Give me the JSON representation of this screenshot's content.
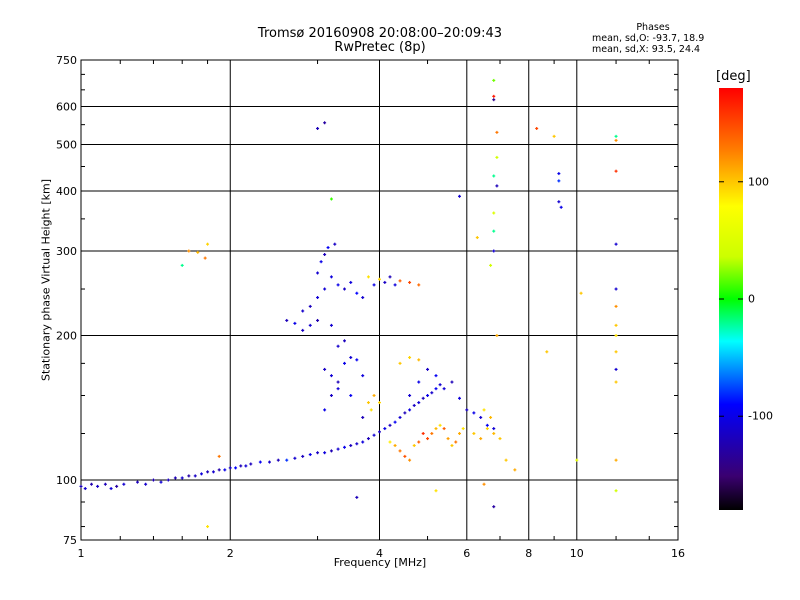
{
  "header": {
    "title_line1": "Tromsø 20160908 20:08:00–20:09:43",
    "title_line2": "RwPretec (8p)"
  },
  "phases": {
    "heading": "Phases",
    "line_O": "mean, sd,O: -93.7, 18.9",
    "line_X": "mean, sd,X:  93.5, 24.4"
  },
  "colorbar": {
    "unit": "[deg]",
    "ticks": [
      {
        "value": 100,
        "label": "100"
      },
      {
        "value": 0,
        "label": "0"
      },
      {
        "value": -100,
        "label": "-100"
      }
    ],
    "range": [
      -180,
      180
    ]
  },
  "chart_data": {
    "type": "scatter",
    "xlabel": "Frequency [MHz]",
    "ylabel": "Stationary phase Virtual Height [km]",
    "xscale": "log",
    "yscale": "log",
    "xlim": [
      1,
      16
    ],
    "ylim": [
      75,
      750
    ],
    "xticks": [
      {
        "value": 1,
        "label": "1"
      },
      {
        "value": 2,
        "label": "2"
      },
      {
        "value": 4,
        "label": "4"
      },
      {
        "value": 6,
        "label": "6"
      },
      {
        "value": 8,
        "label": "8"
      },
      {
        "value": 10,
        "label": "10"
      },
      {
        "value": 16,
        "label": "16"
      }
    ],
    "yticks": [
      {
        "value": 75,
        "label": "75"
      },
      {
        "value": 100,
        "label": "100"
      },
      {
        "value": 200,
        "label": "200"
      },
      {
        "value": 300,
        "label": "300"
      },
      {
        "value": 400,
        "label": "400"
      },
      {
        "value": 500,
        "label": "500"
      },
      {
        "value": 600,
        "label": "600"
      },
      {
        "value": 750,
        "label": "750"
      }
    ],
    "grid": true,
    "series": [
      {
        "points": [
          [
            1.0,
            97,
            -120
          ],
          [
            1.02,
            96,
            -110
          ],
          [
            1.05,
            98,
            -125
          ],
          [
            1.08,
            97,
            -115
          ],
          [
            1.12,
            98,
            -120
          ],
          [
            1.15,
            96,
            -105
          ],
          [
            1.18,
            97,
            -130
          ],
          [
            1.22,
            98,
            -110
          ],
          [
            1.3,
            99,
            -120
          ],
          [
            1.35,
            98,
            -112
          ],
          [
            1.4,
            100,
            -125
          ],
          [
            1.45,
            99,
            -108
          ],
          [
            1.5,
            100,
            -118
          ],
          [
            1.55,
            101,
            -122
          ],
          [
            1.6,
            101,
            -110
          ],
          [
            1.65,
            102,
            -128
          ],
          [
            1.7,
            102,
            -115
          ],
          [
            1.75,
            103,
            -105
          ],
          [
            1.8,
            104,
            -120
          ],
          [
            1.85,
            104,
            -112
          ],
          [
            1.9,
            105,
            -125
          ],
          [
            1.95,
            105,
            -100
          ],
          [
            2.0,
            106,
            -115
          ],
          [
            2.05,
            106,
            -90
          ],
          [
            2.1,
            107,
            -120
          ],
          [
            2.15,
            107,
            -108
          ],
          [
            2.2,
            108,
            -118
          ],
          [
            2.3,
            109,
            -95
          ],
          [
            2.4,
            109,
            -112
          ],
          [
            2.5,
            110,
            -120
          ],
          [
            2.6,
            110,
            -80
          ],
          [
            2.7,
            111,
            -110
          ],
          [
            2.8,
            112,
            -118
          ],
          [
            2.9,
            113,
            -100
          ],
          [
            3.0,
            114,
            -115
          ],
          [
            3.1,
            114,
            -105
          ],
          [
            3.2,
            115,
            -122
          ],
          [
            3.3,
            116,
            -110
          ],
          [
            3.4,
            117,
            -98
          ],
          [
            3.5,
            118,
            -118
          ],
          [
            3.6,
            119,
            -112
          ],
          [
            3.7,
            120,
            -105
          ],
          [
            3.8,
            122,
            -120
          ],
          [
            3.9,
            124,
            -108
          ],
          [
            4.0,
            126,
            -115
          ],
          [
            4.1,
            128,
            -100
          ],
          [
            4.2,
            130,
            -118
          ],
          [
            4.3,
            132,
            -95
          ],
          [
            4.4,
            135,
            -110
          ],
          [
            4.5,
            138,
            -120
          ],
          [
            4.6,
            140,
            -102
          ],
          [
            4.7,
            143,
            -115
          ],
          [
            4.8,
            145,
            -108
          ],
          [
            4.9,
            148,
            -118
          ],
          [
            5.0,
            150,
            -100
          ],
          [
            5.1,
            152,
            -112
          ],
          [
            5.2,
            155,
            -95
          ],
          [
            5.3,
            158,
            -110
          ],
          [
            1.6,
            280,
            -20
          ],
          [
            1.65,
            300,
            120
          ],
          [
            1.72,
            298,
            105
          ],
          [
            1.78,
            290,
            130
          ],
          [
            1.8,
            310,
            95
          ],
          [
            3.0,
            270,
            -110
          ],
          [
            3.05,
            285,
            -100
          ],
          [
            3.1,
            295,
            -120
          ],
          [
            3.15,
            305,
            -95
          ],
          [
            3.2,
            265,
            -105
          ],
          [
            3.25,
            310,
            -115
          ],
          [
            3.0,
            240,
            -108
          ],
          [
            2.9,
            230,
            -118
          ],
          [
            2.8,
            225,
            -112
          ],
          [
            2.6,
            215,
            -120
          ],
          [
            2.7,
            212,
            -100
          ],
          [
            2.8,
            205,
            -115
          ],
          [
            2.9,
            210,
            -110
          ],
          [
            3.0,
            215,
            -125
          ],
          [
            3.1,
            250,
            -108
          ],
          [
            3.3,
            255,
            -100
          ],
          [
            3.4,
            250,
            -115
          ],
          [
            3.5,
            258,
            -105
          ],
          [
            3.6,
            245,
            -90
          ],
          [
            3.7,
            240,
            -110
          ],
          [
            3.9,
            255,
            -100
          ],
          [
            4.1,
            258,
            -115
          ],
          [
            4.2,
            265,
            -120
          ],
          [
            4.3,
            255,
            -105
          ],
          [
            3.8,
            265,
            90
          ],
          [
            4.0,
            262,
            95
          ],
          [
            4.4,
            260,
            140
          ],
          [
            4.6,
            258,
            150
          ],
          [
            4.8,
            255,
            135
          ],
          [
            3.1,
            170,
            -115
          ],
          [
            3.2,
            165,
            -108
          ],
          [
            3.3,
            160,
            -120
          ],
          [
            3.4,
            175,
            -100
          ],
          [
            3.5,
            180,
            -110
          ],
          [
            3.6,
            178,
            -95
          ],
          [
            3.7,
            165,
            -105
          ],
          [
            3.3,
            190,
            -112
          ],
          [
            3.4,
            195,
            -118
          ],
          [
            3.2,
            210,
            -110
          ],
          [
            3.1,
            140,
            -100
          ],
          [
            3.2,
            150,
            -115
          ],
          [
            3.3,
            155,
            -108
          ],
          [
            3.5,
            150,
            -95
          ],
          [
            3.7,
            135,
            -120
          ],
          [
            3.8,
            145,
            100
          ],
          [
            3.9,
            150,
            110
          ],
          [
            4.0,
            145,
            95
          ],
          [
            3.85,
            140,
            90
          ],
          [
            4.2,
            120,
            85
          ],
          [
            4.3,
            118,
            110
          ],
          [
            4.4,
            115,
            130
          ],
          [
            4.5,
            112,
            145
          ],
          [
            4.6,
            110,
            120
          ],
          [
            4.7,
            118,
            100
          ],
          [
            4.8,
            120,
            140
          ],
          [
            4.9,
            125,
            160
          ],
          [
            5.0,
            122,
            150
          ],
          [
            5.1,
            125,
            130
          ],
          [
            5.2,
            128,
            105
          ],
          [
            5.3,
            130,
            90
          ],
          [
            5.4,
            128,
            140
          ],
          [
            5.5,
            122,
            115
          ],
          [
            5.6,
            118,
            100
          ],
          [
            5.7,
            120,
            130
          ],
          [
            5.8,
            125,
            110
          ],
          [
            5.9,
            128,
            90
          ],
          [
            4.6,
            150,
            -110
          ],
          [
            4.8,
            160,
            -100
          ],
          [
            5.0,
            170,
            -115
          ],
          [
            5.2,
            165,
            -95
          ],
          [
            5.4,
            155,
            -108
          ],
          [
            5.6,
            160,
            -120
          ],
          [
            5.8,
            148,
            -105
          ],
          [
            6.0,
            140,
            -115
          ],
          [
            6.2,
            138,
            -100
          ],
          [
            6.4,
            135,
            -110
          ],
          [
            6.6,
            130,
            -95
          ],
          [
            6.8,
            128,
            -108
          ],
          [
            4.4,
            175,
            100
          ],
          [
            4.6,
            180,
            95
          ],
          [
            4.8,
            178,
            105
          ],
          [
            6.2,
            125,
            100
          ],
          [
            6.4,
            122,
            110
          ],
          [
            6.6,
            128,
            95
          ],
          [
            6.8,
            125,
            105
          ],
          [
            7.0,
            122,
            100
          ],
          [
            6.5,
            140,
            90
          ],
          [
            6.7,
            135,
            105
          ],
          [
            6.8,
            680,
            20
          ],
          [
            6.8,
            620,
            -140
          ],
          [
            6.8,
            630,
            170
          ],
          [
            6.9,
            530,
            130
          ],
          [
            6.9,
            470,
            40
          ],
          [
            6.8,
            430,
            -20
          ],
          [
            6.9,
            410,
            -120
          ],
          [
            6.8,
            360,
            50
          ],
          [
            6.8,
            330,
            -20
          ],
          [
            6.8,
            300,
            -110
          ],
          [
            6.7,
            280,
            40
          ],
          [
            6.9,
            200,
            110
          ],
          [
            8.3,
            540,
            150
          ],
          [
            9.0,
            520,
            100
          ],
          [
            9.2,
            435,
            -100
          ],
          [
            9.2,
            420,
            -80
          ],
          [
            9.2,
            380,
            -110
          ],
          [
            9.3,
            370,
            -100
          ],
          [
            10.2,
            245,
            100
          ],
          [
            10.0,
            110,
            60
          ],
          [
            12.0,
            520,
            -20
          ],
          [
            12.0,
            510,
            120
          ],
          [
            12.0,
            440,
            160
          ],
          [
            12.0,
            310,
            -110
          ],
          [
            12.0,
            250,
            -110
          ],
          [
            12.0,
            230,
            120
          ],
          [
            12.0,
            210,
            100
          ],
          [
            12.0,
            200,
            90
          ],
          [
            12.0,
            185,
            100
          ],
          [
            12.0,
            170,
            -110
          ],
          [
            12.0,
            160,
            100
          ],
          [
            12.0,
            110,
            110
          ],
          [
            12.0,
            95,
            40
          ],
          [
            8.7,
            185,
            100
          ],
          [
            7.2,
            110,
            100
          ],
          [
            7.5,
            105,
            110
          ],
          [
            6.5,
            98,
            120
          ],
          [
            6.8,
            88,
            -130
          ],
          [
            5.2,
            95,
            90
          ],
          [
            3.0,
            540,
            -120
          ],
          [
            3.1,
            555,
            -130
          ],
          [
            3.2,
            385,
            10
          ],
          [
            3.6,
            92,
            -120
          ],
          [
            1.9,
            112,
            130
          ],
          [
            1.8,
            80,
            90
          ],
          [
            5.8,
            390,
            -110
          ],
          [
            6.3,
            320,
            100
          ]
        ]
      }
    ]
  }
}
